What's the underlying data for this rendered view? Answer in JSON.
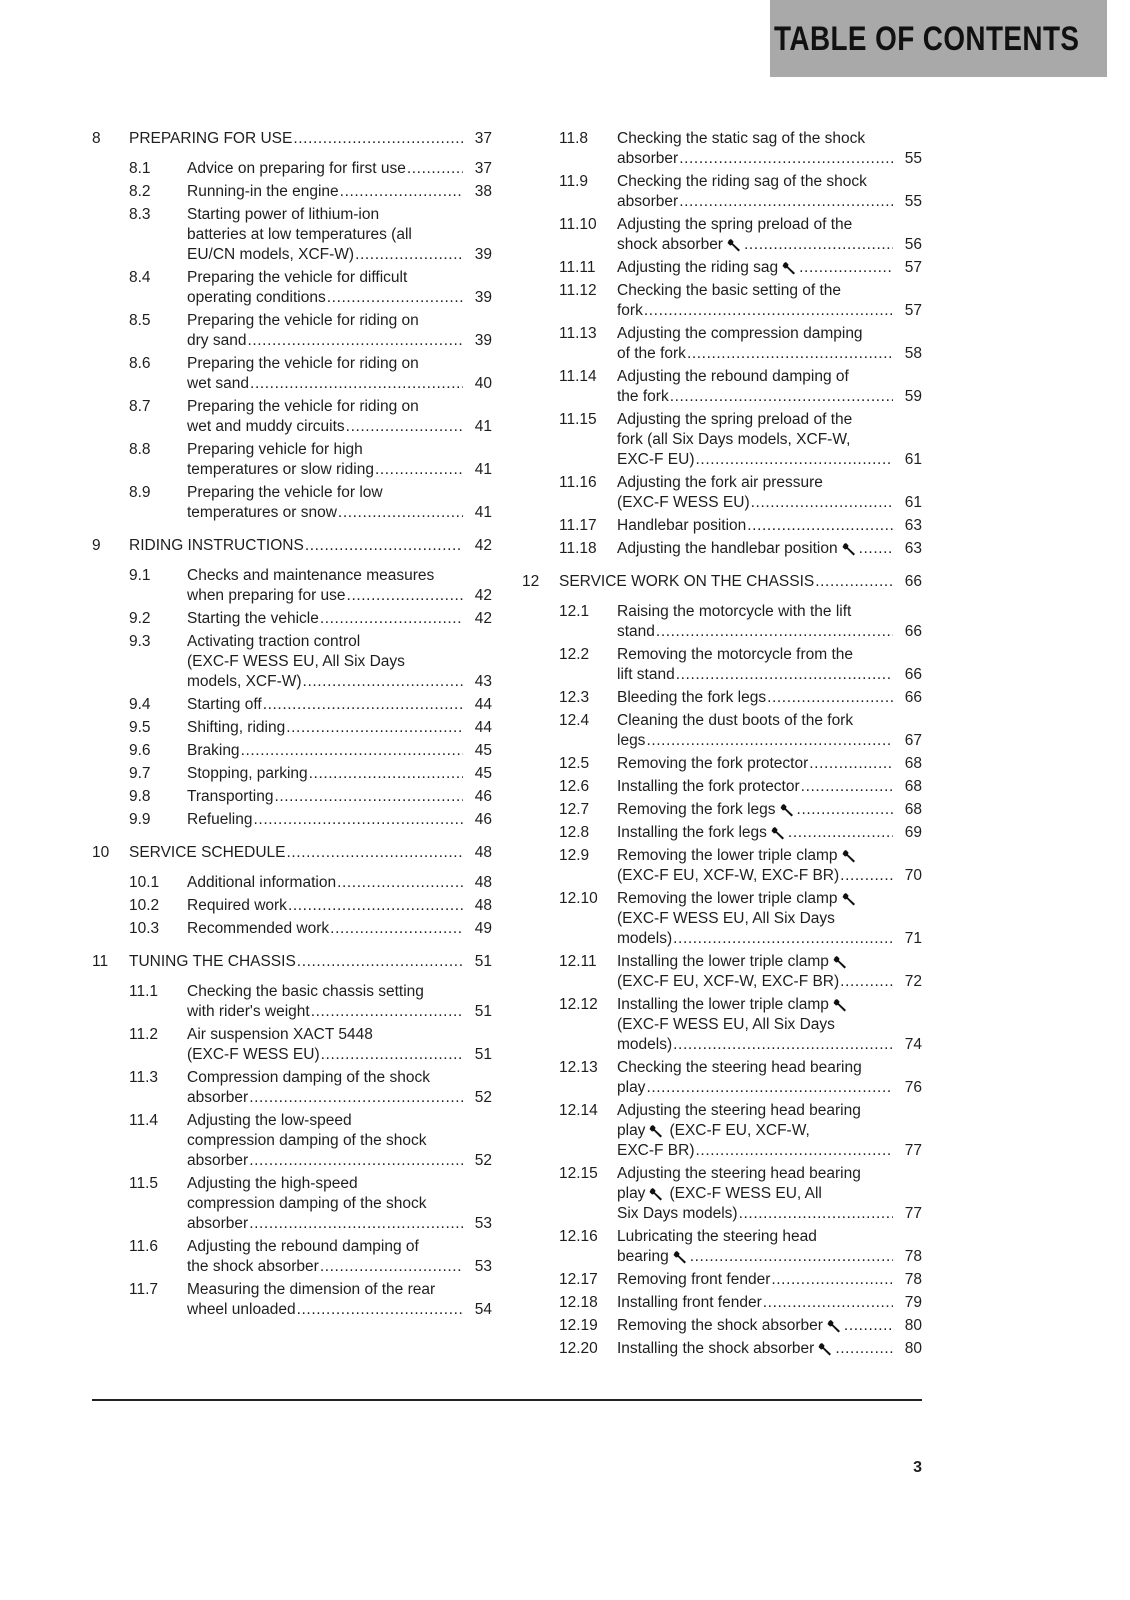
{
  "header": {
    "title": "TABLE OF CONTENTS",
    "background": "#a9a9a9"
  },
  "columns": [
    [
      {
        "num": "8",
        "title": "PREPARING FOR USE",
        "page": "37",
        "entries": [
          {
            "num": "8.1",
            "lines": [
              "Advice on preparing for first use"
            ],
            "page": "37"
          },
          {
            "num": "8.2",
            "lines": [
              "Running-in the engine"
            ],
            "page": "38"
          },
          {
            "num": "8.3",
            "lines": [
              "Starting power of lithium-ion",
              "batteries at low temperatures (all",
              "EU/CN models, XCF-W)"
            ],
            "page": "39"
          },
          {
            "num": "8.4",
            "lines": [
              "Preparing the vehicle for difficult",
              "operating conditions"
            ],
            "page": "39"
          },
          {
            "num": "8.5",
            "lines": [
              "Preparing the vehicle for riding on",
              "dry sand"
            ],
            "page": "39"
          },
          {
            "num": "8.6",
            "lines": [
              "Preparing the vehicle for riding on",
              "wet sand"
            ],
            "page": "40"
          },
          {
            "num": "8.7",
            "lines": [
              "Preparing the vehicle for riding on",
              "wet and muddy circuits"
            ],
            "page": "41"
          },
          {
            "num": "8.8",
            "lines": [
              "Preparing vehicle for high",
              "temperatures or slow riding"
            ],
            "page": "41"
          },
          {
            "num": "8.9",
            "lines": [
              "Preparing the vehicle for low",
              "temperatures or snow"
            ],
            "page": "41"
          }
        ]
      },
      {
        "num": "9",
        "title": "RIDING INSTRUCTIONS",
        "page": "42",
        "entries": [
          {
            "num": "9.1",
            "lines": [
              "Checks and maintenance measures",
              "when preparing for use"
            ],
            "page": "42"
          },
          {
            "num": "9.2",
            "lines": [
              "Starting the vehicle"
            ],
            "page": "42"
          },
          {
            "num": "9.3",
            "lines": [
              "Activating traction control",
              "(EXC-F WESS EU, All Six Days",
              "models, XCF-W)"
            ],
            "page": "43"
          },
          {
            "num": "9.4",
            "lines": [
              "Starting off"
            ],
            "page": "44"
          },
          {
            "num": "9.5",
            "lines": [
              "Shifting, riding"
            ],
            "page": "44"
          },
          {
            "num": "9.6",
            "lines": [
              "Braking"
            ],
            "page": "45"
          },
          {
            "num": "9.7",
            "lines": [
              "Stopping, parking"
            ],
            "page": "45"
          },
          {
            "num": "9.8",
            "lines": [
              "Transporting"
            ],
            "page": "46"
          },
          {
            "num": "9.9",
            "lines": [
              "Refueling"
            ],
            "page": "46"
          }
        ]
      },
      {
        "num": "10",
        "title": "SERVICE SCHEDULE",
        "page": "48",
        "entries": [
          {
            "num": "10.1",
            "lines": [
              "Additional information"
            ],
            "page": "48"
          },
          {
            "num": "10.2",
            "lines": [
              "Required work"
            ],
            "page": "48"
          },
          {
            "num": "10.3",
            "lines": [
              "Recommended work"
            ],
            "page": "49"
          }
        ]
      },
      {
        "num": "11",
        "title": "TUNING THE CHASSIS",
        "page": "51",
        "entries": [
          {
            "num": "11.1",
            "lines": [
              "Checking the basic chassis setting",
              "with rider's weight"
            ],
            "page": "51"
          },
          {
            "num": "11.2",
            "lines": [
              "Air suspension XACT 5448",
              "(EXC-F WESS EU)"
            ],
            "page": "51"
          },
          {
            "num": "11.3",
            "lines": [
              "Compression damping of the shock",
              "absorber"
            ],
            "page": "52"
          },
          {
            "num": "11.4",
            "lines": [
              "Adjusting the low-speed",
              "compression damping of the shock",
              "absorber"
            ],
            "page": "52"
          },
          {
            "num": "11.5",
            "lines": [
              "Adjusting the high-speed",
              "compression damping of the shock",
              "absorber"
            ],
            "page": "53"
          },
          {
            "num": "11.6",
            "lines": [
              "Adjusting the rebound damping of",
              "the shock absorber"
            ],
            "page": "53"
          },
          {
            "num": "11.7",
            "lines": [
              "Measuring the dimension of the rear",
              "wheel unloaded"
            ],
            "page": "54"
          }
        ]
      }
    ],
    [
      {
        "num": null,
        "entries": [
          {
            "num": "11.8",
            "lines": [
              "Checking the static sag of the shock",
              "absorber"
            ],
            "page": "55"
          },
          {
            "num": "11.9",
            "lines": [
              "Checking the riding sag of the shock",
              "absorber"
            ],
            "page": "55"
          },
          {
            "num": "11.10",
            "lines": [
              "Adjusting the spring preload of the",
              {
                "t": "shock absorber",
                "w": true
              }
            ],
            "page": "56"
          },
          {
            "num": "11.11",
            "lines": [
              {
                "t": "Adjusting the riding sag",
                "w": true
              }
            ],
            "page": "57"
          },
          {
            "num": "11.12",
            "lines": [
              "Checking the basic setting of the",
              "fork"
            ],
            "page": "57"
          },
          {
            "num": "11.13",
            "lines": [
              "Adjusting the compression damping",
              "of the fork"
            ],
            "page": "58"
          },
          {
            "num": "11.14",
            "lines": [
              "Adjusting the rebound damping of",
              "the fork"
            ],
            "page": "59"
          },
          {
            "num": "11.15",
            "lines": [
              "Adjusting the spring preload of the",
              "fork (all Six Days models, XCF-W,",
              "EXC-F EU)"
            ],
            "page": "61"
          },
          {
            "num": "11.16",
            "lines": [
              "Adjusting the fork air pressure",
              "(EXC-F WESS EU)"
            ],
            "page": "61"
          },
          {
            "num": "11.17",
            "lines": [
              "Handlebar position"
            ],
            "page": "63"
          },
          {
            "num": "11.18",
            "lines": [
              {
                "t": "Adjusting the handlebar position",
                "w": true
              }
            ],
            "page": "63"
          }
        ]
      },
      {
        "num": "12",
        "title": "SERVICE WORK ON THE CHASSIS",
        "page": "66",
        "entries": [
          {
            "num": "12.1",
            "lines": [
              "Raising the motorcycle with the lift",
              "stand"
            ],
            "page": "66"
          },
          {
            "num": "12.2",
            "lines": [
              "Removing the motorcycle from the",
              "lift stand"
            ],
            "page": "66"
          },
          {
            "num": "12.3",
            "lines": [
              "Bleeding the fork legs"
            ],
            "page": "66"
          },
          {
            "num": "12.4",
            "lines": [
              "Cleaning the dust boots of the fork",
              "legs"
            ],
            "page": "67"
          },
          {
            "num": "12.5",
            "lines": [
              "Removing the fork protector"
            ],
            "page": "68"
          },
          {
            "num": "12.6",
            "lines": [
              "Installing the fork protector"
            ],
            "page": "68"
          },
          {
            "num": "12.7",
            "lines": [
              {
                "t": "Removing the fork legs",
                "w": true
              }
            ],
            "page": "68"
          },
          {
            "num": "12.8",
            "lines": [
              {
                "t": "Installing the fork legs",
                "w": true
              }
            ],
            "page": "69"
          },
          {
            "num": "12.9",
            "lines": [
              {
                "t": "Removing the lower triple clamp",
                "w": true
              },
              "(EXC-F EU, XCF-W, EXC-F BR)"
            ],
            "page": "70"
          },
          {
            "num": "12.10",
            "lines": [
              {
                "t": "Removing the lower triple clamp",
                "w": true
              },
              "(EXC-F WESS EU, All Six Days",
              "models)"
            ],
            "page": "71"
          },
          {
            "num": "12.11",
            "lines": [
              {
                "t": "Installing the lower triple clamp",
                "w": true
              },
              "(EXC-F EU, XCF-W, EXC-F BR)"
            ],
            "page": "72"
          },
          {
            "num": "12.12",
            "lines": [
              {
                "t": "Installing the lower triple clamp",
                "w": true
              },
              "(EXC-F WESS EU, All Six Days",
              "models)"
            ],
            "page": "74"
          },
          {
            "num": "12.13",
            "lines": [
              "Checking the steering head bearing",
              "play"
            ],
            "page": "76"
          },
          {
            "num": "12.14",
            "lines": [
              "Adjusting the steering head bearing",
              {
                "t": "play",
                "w": true,
                "a": "(EXC-F EU, XCF-W,"
              },
              "EXC-F BR)"
            ],
            "page": "77"
          },
          {
            "num": "12.15",
            "lines": [
              "Adjusting the steering head bearing",
              {
                "t": "play",
                "w": true,
                "a": "(EXC-F WESS EU, All"
              },
              "Six Days models)"
            ],
            "page": "77"
          },
          {
            "num": "12.16",
            "lines": [
              "Lubricating the steering head",
              {
                "t": "bearing",
                "w": true
              }
            ],
            "page": "78"
          },
          {
            "num": "12.17",
            "lines": [
              "Removing front fender"
            ],
            "page": "78"
          },
          {
            "num": "12.18",
            "lines": [
              "Installing front fender"
            ],
            "page": "79"
          },
          {
            "num": "12.19",
            "lines": [
              {
                "t": "Removing the shock absorber",
                "w": true
              }
            ],
            "page": "80"
          },
          {
            "num": "12.20",
            "lines": [
              {
                "t": "Installing the shock absorber",
                "w": true
              }
            ],
            "page": "80"
          }
        ]
      }
    ]
  ],
  "footer": {
    "page_number": "3"
  },
  "icons": {
    "wrench": "wrench-icon"
  }
}
